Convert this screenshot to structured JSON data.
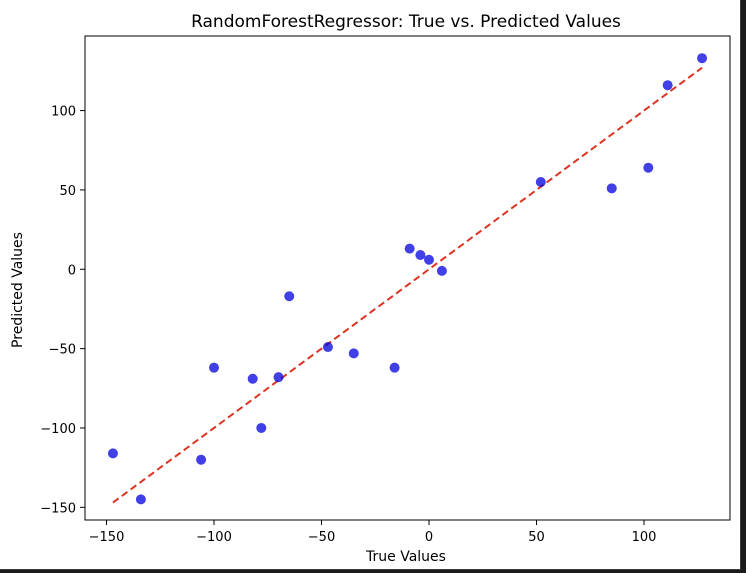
{
  "chart_data": {
    "type": "scatter",
    "title": "RandomForestRegressor: True vs. Predicted Values",
    "xlabel": "True Values",
    "ylabel": "Predicted Values",
    "xlim": [
      -160,
      140
    ],
    "ylim": [
      -158,
      147
    ],
    "xticks": [
      -150,
      -100,
      -50,
      0,
      50,
      100
    ],
    "yticks": [
      -150,
      -100,
      -50,
      0,
      50,
      100
    ],
    "grid": false,
    "point_color": "#0000dd",
    "line_color": "#dd3322",
    "reference_line": {
      "x": [
        -147,
        127
      ],
      "y": [
        -147,
        127
      ],
      "style": "dashed"
    },
    "points": [
      {
        "x": -147,
        "y": -116
      },
      {
        "x": -134,
        "y": -145
      },
      {
        "x": -106,
        "y": -120
      },
      {
        "x": -100,
        "y": -62
      },
      {
        "x": -82,
        "y": -69
      },
      {
        "x": -78,
        "y": -100
      },
      {
        "x": -70,
        "y": -68
      },
      {
        "x": -65,
        "y": -17
      },
      {
        "x": -47,
        "y": -49
      },
      {
        "x": -35,
        "y": -53
      },
      {
        "x": -16,
        "y": -62
      },
      {
        "x": -9,
        "y": 13
      },
      {
        "x": -4,
        "y": 9
      },
      {
        "x": 0,
        "y": 6
      },
      {
        "x": 6,
        "y": -1
      },
      {
        "x": 52,
        "y": 55
      },
      {
        "x": 85,
        "y": 51
      },
      {
        "x": 102,
        "y": 64
      },
      {
        "x": 111,
        "y": 116
      },
      {
        "x": 127,
        "y": 133
      }
    ]
  }
}
